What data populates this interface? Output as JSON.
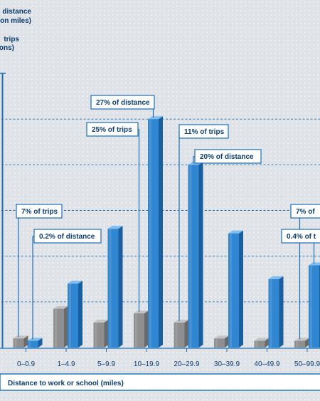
{
  "chart_data": {
    "type": "bar",
    "legend": {
      "distance_lines": [
        "distance",
        "on miles)"
      ],
      "trips_lines": [
        "trips",
        "ons)"
      ]
    },
    "xlabel": "Distance to work or school (miles)",
    "categories": [
      "0–0.9",
      "1–4.9",
      "5–9.9",
      "10–19.9",
      "20–29.9",
      "30–39.9",
      "40–49.9",
      "50–99.9"
    ],
    "series": [
      {
        "values": [
          0.4,
          1.7,
          1.1,
          1.5,
          1.1,
          0.4,
          0.3,
          0.3
        ]
      },
      {
        "values": [
          0.3,
          2.8,
          5.2,
          10.0,
          8.0,
          5.0,
          3.0,
          3.6
        ]
      }
    ],
    "ylim": [
      0,
      12
    ],
    "gridlines": [
      2,
      4,
      6,
      8,
      10
    ],
    "colors": {
      "trips_front": "#8f8f8f",
      "trips_side": "#6a6a6a",
      "trips_top": "#c3c3c3",
      "dist_front": "#2f86d1",
      "dist_side": "#1a5e9e",
      "dist_top": "#7fbef0",
      "line": "#1c6fb5"
    },
    "annotations": [
      {
        "text": "27% of distance",
        "series": 1,
        "category": 3
      },
      {
        "text": "25% of trips",
        "series": 0,
        "category": 3
      },
      {
        "text": "11% of trips",
        "series": 0,
        "category": 4
      },
      {
        "text": "20% of distance",
        "series": 1,
        "category": 4
      },
      {
        "text": "7% of trips",
        "series": 0,
        "category": 0
      },
      {
        "text": "0.2% of distance",
        "series": 1,
        "category": 0
      },
      {
        "text": "7% of",
        "series": 0,
        "category": 7
      },
      {
        "text": "0.4% of t",
        "series": 1,
        "category": 7
      }
    ]
  }
}
